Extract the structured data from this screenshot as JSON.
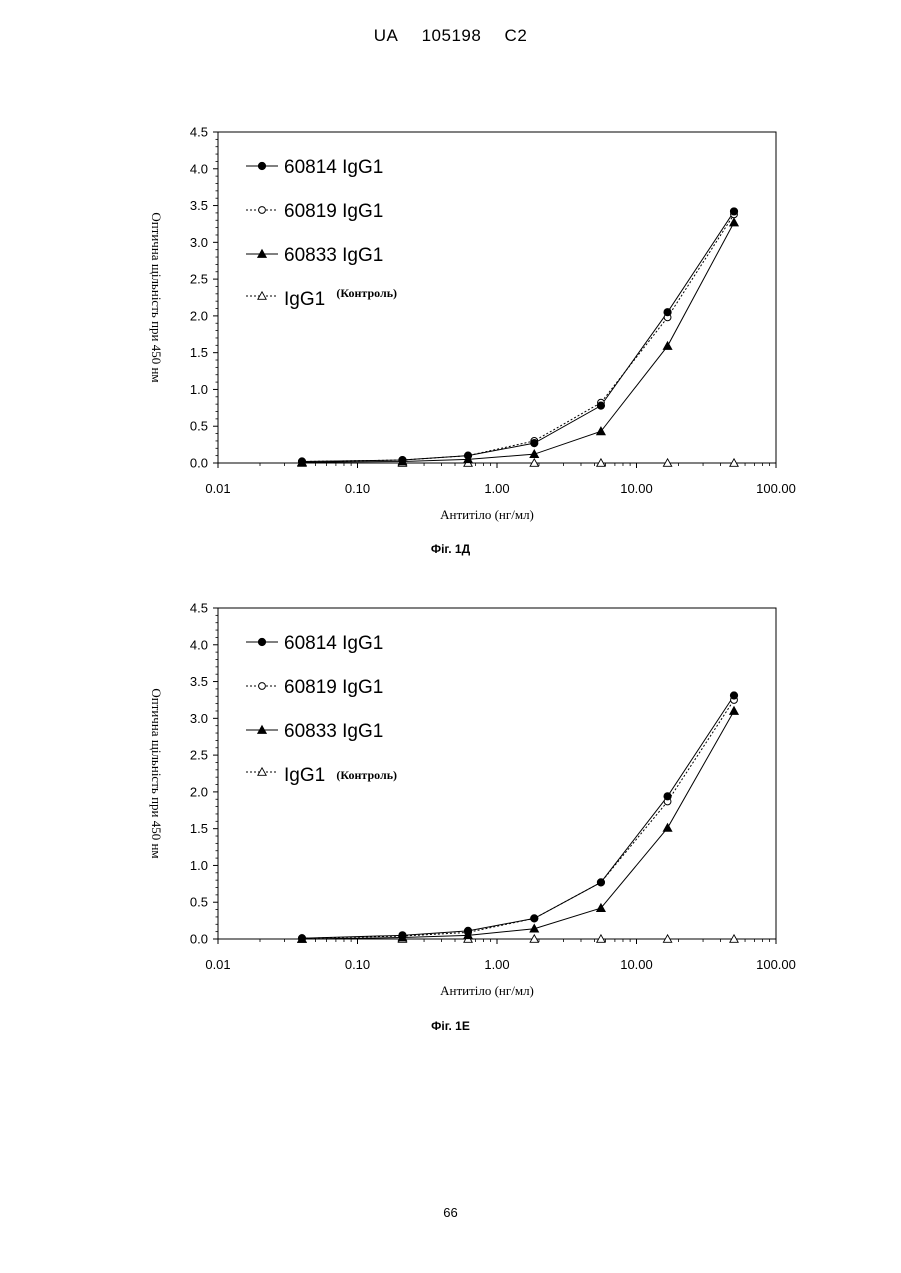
{
  "header": {
    "country": "UA",
    "number": "105198",
    "kind": "C2"
  },
  "page_number": "66",
  "chart_data": [
    {
      "type": "line",
      "caption": "Фіг. 1Д",
      "xlabel": "Антитіло (нг/мл)",
      "ylabel": "Оптична щільність при 450 нм",
      "x_scale": "log",
      "xlim": [
        0.01,
        100
      ],
      "ylim": [
        0,
        4.5
      ],
      "xticks": [
        "0.01",
        "0.10",
        "1.00",
        "10.00",
        "100.00"
      ],
      "yticks": [
        "0.0",
        "0.5",
        "1.0",
        "1.5",
        "2.0",
        "2.5",
        "3.0",
        "3.5",
        "4.0",
        "4.5"
      ],
      "legend_position": "top-left",
      "x": [
        0.04,
        0.21,
        0.62,
        1.85,
        5.56,
        16.7,
        50
      ],
      "series": [
        {
          "name": "60814 IgG1",
          "note": "",
          "marker": "filled-circle",
          "line": "solid",
          "values": [
            0.02,
            0.04,
            0.1,
            0.27,
            0.78,
            2.05,
            3.42
          ]
        },
        {
          "name": "60819 IgG1",
          "note": "",
          "marker": "open-circle",
          "line": "dotted",
          "values": [
            0.02,
            0.04,
            0.1,
            0.3,
            0.82,
            1.98,
            3.38
          ]
        },
        {
          "name": "60833 IgG1",
          "note": "",
          "marker": "filled-triangle",
          "line": "solid",
          "values": [
            0.01,
            0.02,
            0.05,
            0.12,
            0.43,
            1.59,
            3.27
          ]
        },
        {
          "name": "IgG1",
          "note": "(Контроль)",
          "marker": "open-triangle",
          "line": "dotted",
          "values": [
            0.0,
            0.0,
            0.0,
            0.0,
            0.0,
            0.0,
            0.0
          ]
        }
      ]
    },
    {
      "type": "line",
      "caption": "Фіг. 1Е",
      "xlabel": "Антитіло (нг/мл)",
      "ylabel": "Оптична щільність при 450 нм",
      "x_scale": "log",
      "xlim": [
        0.01,
        100
      ],
      "ylim": [
        0,
        4.5
      ],
      "xticks": [
        "0.01",
        "0.10",
        "1.00",
        "10.00",
        "100.00"
      ],
      "yticks": [
        "0.0",
        "0.5",
        "1.0",
        "1.5",
        "2.0",
        "2.5",
        "3.0",
        "3.5",
        "4.0",
        "4.5"
      ],
      "legend_position": "top-left",
      "x": [
        0.04,
        0.21,
        0.62,
        1.85,
        5.56,
        16.7,
        50
      ],
      "series": [
        {
          "name": "60814 IgG1",
          "note": "",
          "marker": "filled-circle",
          "line": "solid",
          "values": [
            0.01,
            0.05,
            0.11,
            0.28,
            0.77,
            1.94,
            3.31
          ]
        },
        {
          "name": "60819 IgG1",
          "note": "",
          "marker": "open-circle",
          "line": "dotted",
          "values": [
            0.01,
            0.04,
            0.09,
            0.28,
            0.77,
            1.87,
            3.25
          ]
        },
        {
          "name": "60833 IgG1",
          "note": "",
          "marker": "filled-triangle",
          "line": "solid",
          "values": [
            0.0,
            0.02,
            0.05,
            0.14,
            0.42,
            1.51,
            3.1
          ]
        },
        {
          "name": "IgG1",
          "note": "(Контроль)",
          "marker": "open-triangle",
          "line": "dotted",
          "values": [
            0.0,
            0.0,
            0.0,
            0.0,
            0.0,
            0.0,
            0.0
          ]
        }
      ]
    }
  ]
}
